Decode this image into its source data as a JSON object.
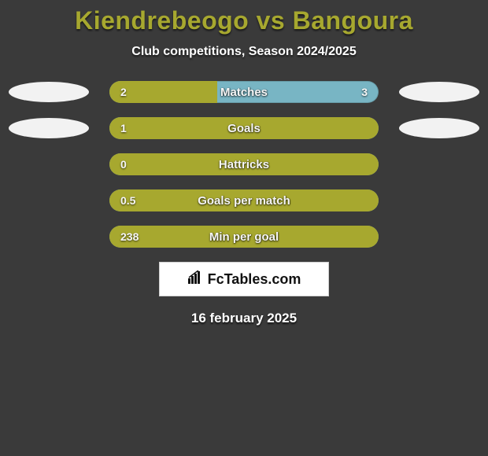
{
  "title_color": "#a7a82f",
  "title": "Kiendrebeogo vs Bangoura",
  "subtitle": "Club competitions, Season 2024/2025",
  "bar_track_width": 342,
  "left_color": "#a7a82f",
  "right_color": "#78b5c4",
  "ellipse_color": "#f2f2f2",
  "rows": [
    {
      "label": "Matches",
      "left": "2",
      "right": "3",
      "left_pct": 40,
      "show_right_value": true,
      "left_ellipse": true,
      "right_ellipse": true
    },
    {
      "label": "Goals",
      "left": "1",
      "right": "",
      "left_pct": 100,
      "show_right_value": false,
      "left_ellipse": true,
      "right_ellipse": true
    },
    {
      "label": "Hattricks",
      "left": "0",
      "right": "",
      "left_pct": 100,
      "show_right_value": false,
      "left_ellipse": false,
      "right_ellipse": false
    },
    {
      "label": "Goals per match",
      "left": "0.5",
      "right": "",
      "left_pct": 100,
      "show_right_value": false,
      "left_ellipse": false,
      "right_ellipse": false
    },
    {
      "label": "Min per goal",
      "left": "238",
      "right": "",
      "left_pct": 100,
      "show_right_value": false,
      "left_ellipse": false,
      "right_ellipse": false
    }
  ],
  "logo_text": "FcTables.com",
  "date": "16 february 2025",
  "fonts": {
    "title_size": 32,
    "subtitle_size": 16,
    "bar_label_size": 15,
    "bar_value_size": 14,
    "date_size": 17
  },
  "background_color": "#3a3a3a"
}
